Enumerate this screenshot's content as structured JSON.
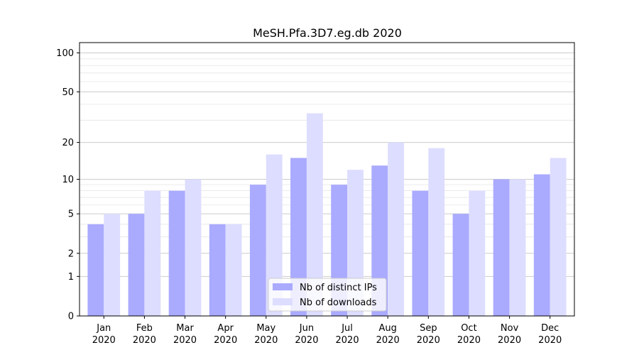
{
  "chart_data": {
    "type": "bar",
    "title": "MeSH.Pfa.3D7.eg.db 2020",
    "xlabel": "",
    "ylabel": "",
    "y_scale": "log(1+y)",
    "ylim": [
      0,
      120
    ],
    "yticks": [
      0,
      1,
      2,
      5,
      10,
      20,
      50,
      100
    ],
    "grid": "horizontal, major and minor",
    "legend_position": "bottom-center",
    "categories": [
      [
        "Jan",
        "2020"
      ],
      [
        "Feb",
        "2020"
      ],
      [
        "Mar",
        "2020"
      ],
      [
        "Apr",
        "2020"
      ],
      [
        "May",
        "2020"
      ],
      [
        "Jun",
        "2020"
      ],
      [
        "Jul",
        "2020"
      ],
      [
        "Aug",
        "2020"
      ],
      [
        "Sep",
        "2020"
      ],
      [
        "Oct",
        "2020"
      ],
      [
        "Nov",
        "2020"
      ],
      [
        "Dec",
        "2020"
      ]
    ],
    "series": [
      {
        "name": "Nb of distinct IPs",
        "color": "#aaaaff",
        "values": [
          4,
          5,
          8,
          4,
          9,
          15,
          9,
          13,
          8,
          5,
          10,
          11
        ]
      },
      {
        "name": "Nb of downloads",
        "color": "#ddddff",
        "values": [
          5,
          8,
          10,
          4,
          16,
          34,
          12,
          20,
          18,
          8,
          10,
          15
        ]
      }
    ]
  }
}
